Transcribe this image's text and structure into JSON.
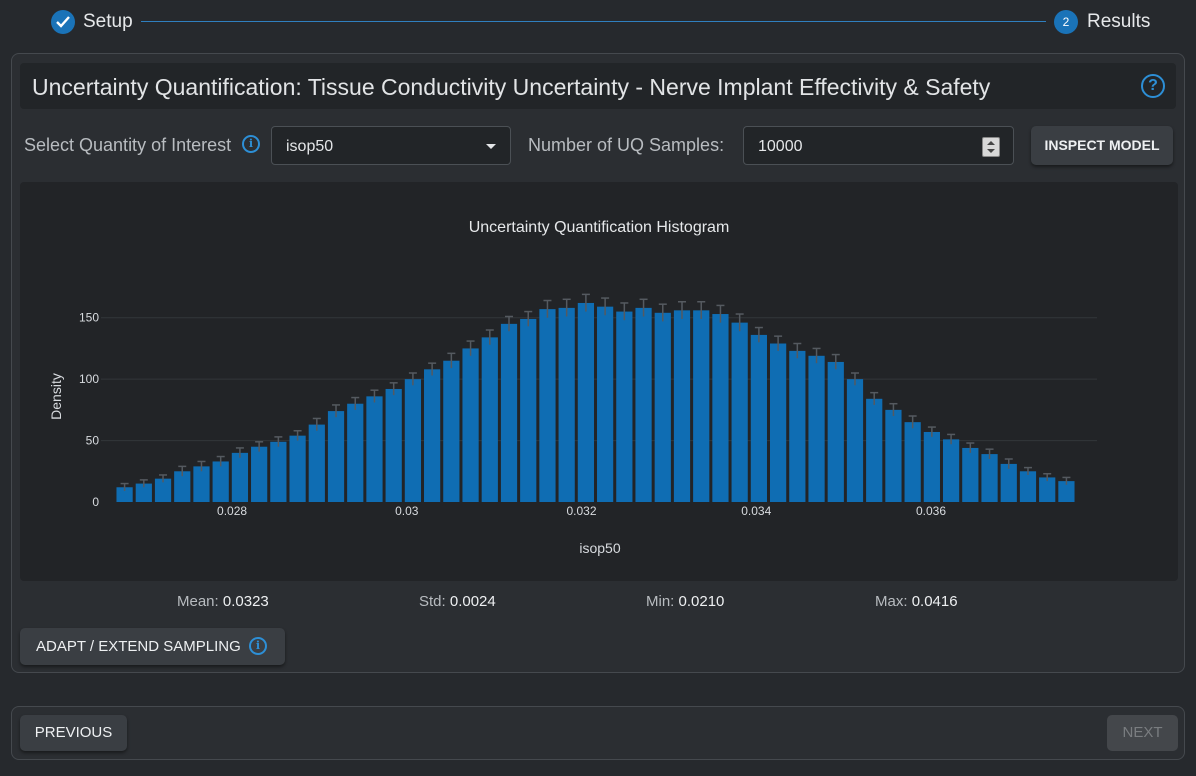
{
  "stepper": {
    "step1_label": "Setup",
    "step2_number": "2",
    "step2_label": "Results"
  },
  "header": {
    "title": "Uncertainty Quantification: Tissue Conductivity Uncertainty - Nerve Implant Effectivity & Safety",
    "help_icon": "question-circle-icon"
  },
  "controls": {
    "qoi_label": "Select Quantity of Interest",
    "qoi_value": "isop50",
    "samples_label": "Number of UQ Samples:",
    "samples_value": "10000",
    "inspect_label": "INSPECT MODEL"
  },
  "chart_data": {
    "type": "bar",
    "title": "Uncertainty Quantification Histogram",
    "xlabel": "isop50",
    "ylabel": "Density",
    "xlim": [
      0.0265,
      0.0379
    ],
    "ylim": [
      0,
      175
    ],
    "x_ticks": [
      "0.028",
      "0.03",
      "0.032",
      "0.034",
      "0.036"
    ],
    "y_ticks": [
      "0",
      "50",
      "100",
      "150"
    ],
    "bin_width": 0.00022,
    "x": [
      0.02677,
      0.02699,
      0.02721,
      0.02743,
      0.02765,
      0.02787,
      0.02809,
      0.02831,
      0.02853,
      0.02875,
      0.02897,
      0.02919,
      0.02941,
      0.02963,
      0.02985,
      0.03007,
      0.03029,
      0.03051,
      0.03073,
      0.03095,
      0.03117,
      0.03139,
      0.03161,
      0.03183,
      0.03205,
      0.03227,
      0.03249,
      0.03271,
      0.03293,
      0.03315,
      0.03337,
      0.03359,
      0.03381,
      0.03403,
      0.03425,
      0.03447,
      0.03469,
      0.03491,
      0.03513,
      0.03535,
      0.03557,
      0.03579,
      0.03601,
      0.03623,
      0.03645,
      0.03667,
      0.03689,
      0.03711,
      0.03733,
      0.03755
    ],
    "values": [
      12,
      15,
      19,
      25,
      29,
      33,
      40,
      45,
      49,
      54,
      63,
      74,
      80,
      86,
      92,
      100,
      108,
      115,
      125,
      134,
      145,
      149,
      157,
      158,
      162,
      159,
      155,
      158,
      154,
      156,
      156,
      153,
      146,
      136,
      129,
      123,
      119,
      114,
      100,
      84,
      75,
      65,
      57,
      51,
      44,
      39,
      31,
      25,
      20,
      17
    ],
    "errors": [
      3,
      3,
      3,
      4,
      4,
      4,
      4,
      4,
      4,
      4,
      5,
      5,
      5,
      5,
      5,
      5,
      5,
      6,
      6,
      6,
      6,
      6,
      7,
      7,
      7,
      7,
      7,
      7,
      7,
      7,
      7,
      7,
      7,
      6,
      6,
      6,
      6,
      6,
      5,
      5,
      5,
      5,
      4,
      4,
      4,
      4,
      4,
      3,
      3,
      3
    ],
    "grid": true,
    "bar_color": "#0f6db3",
    "error_color": "#555a60"
  },
  "stats": {
    "mean_label": "Mean:",
    "mean_value": "0.0323",
    "std_label": "Std:",
    "std_value": "0.0024",
    "min_label": "Min:",
    "min_value": "0.0210",
    "max_label": "Max:",
    "max_value": "0.0416"
  },
  "actions": {
    "adapt_label": "ADAPT / EXTEND SAMPLING",
    "previous_label": "PREVIOUS",
    "next_label": "NEXT"
  }
}
